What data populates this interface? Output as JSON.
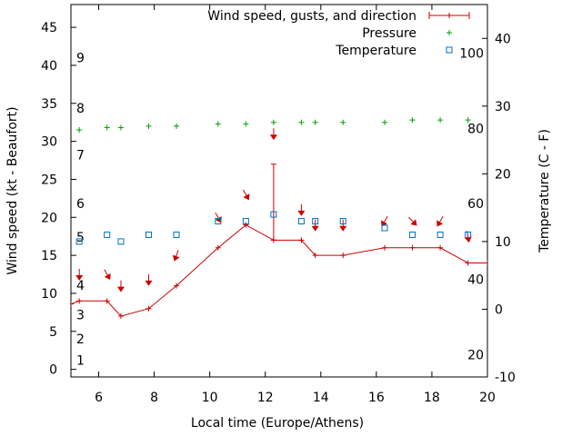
{
  "chart_data": {
    "type": "line",
    "xlabel": "Local time (Europe/Athens)",
    "ylabel": "Wind speed (kt - Beaufort)",
    "y2label": "Temperature (C - F)",
    "xlim": [
      5,
      20
    ],
    "ylim": [
      -1,
      48
    ],
    "y2lim": [
      -10,
      45
    ],
    "grid": false,
    "legend_position": "top-right",
    "x_ticks": [
      6,
      8,
      10,
      12,
      14,
      16,
      18,
      20
    ],
    "y_ticks": [
      0,
      5,
      10,
      15,
      20,
      25,
      30,
      35,
      40,
      45
    ],
    "y2_ticks": [
      -10,
      0,
      10,
      20,
      30,
      40
    ],
    "beaufort_labels": [
      {
        "label": "1",
        "kt": 1.2
      },
      {
        "label": "2",
        "kt": 4.0
      },
      {
        "label": "3",
        "kt": 7.2
      },
      {
        "label": "4",
        "kt": 11.1
      },
      {
        "label": "5",
        "kt": 17.4
      },
      {
        "label": "6",
        "kt": 21.8
      },
      {
        "label": "7",
        "kt": 28.2
      },
      {
        "label": "8",
        "kt": 34.4
      },
      {
        "label": "9",
        "kt": 41.0
      }
    ],
    "fahrenheit_labels": [
      {
        "label": "20",
        "celsius": -6.7
      },
      {
        "label": "40",
        "celsius": 4.4
      },
      {
        "label": "60",
        "celsius": 15.6
      },
      {
        "label": "80",
        "celsius": 26.7
      },
      {
        "label": "100",
        "celsius": 37.8
      }
    ],
    "series": [
      {
        "name": "Wind speed, gusts, and direction",
        "color": "#cc0000",
        "x": [
          5,
          5.3,
          6.3,
          6.8,
          7.8,
          8.8,
          10.3,
          11.3,
          12.3,
          13.3,
          13.8,
          14.8,
          16.3,
          17.3,
          18.3,
          19.3,
          20
        ],
        "y": [
          8.6,
          9,
          9,
          7,
          8,
          11,
          16,
          19,
          17,
          17,
          15,
          15,
          16,
          16,
          16,
          14,
          14
        ],
        "gusts": [
          {
            "x": 12.3,
            "low": 17,
            "high": 27
          }
        ],
        "directions": [
          {
            "x": 5.3,
            "wind": 12.5,
            "deg": 0
          },
          {
            "x": 6.3,
            "wind": 12.5,
            "deg": 330
          },
          {
            "x": 6.8,
            "wind": 11.0,
            "deg": 0
          },
          {
            "x": 7.8,
            "wind": 11.8,
            "deg": 0
          },
          {
            "x": 8.8,
            "wind": 15.0,
            "deg": 20
          },
          {
            "x": 10.3,
            "wind": 20.0,
            "deg": 330
          },
          {
            "x": 11.3,
            "wind": 23.0,
            "deg": 330
          },
          {
            "x": 12.3,
            "wind": 31.0,
            "deg": 0
          },
          {
            "x": 13.3,
            "wind": 21.0,
            "deg": 0
          },
          {
            "x": 13.8,
            "wind": 19.0,
            "deg": 0
          },
          {
            "x": 14.8,
            "wind": 19.0,
            "deg": 0
          },
          {
            "x": 16.3,
            "wind": 19.5,
            "deg": 30
          },
          {
            "x": 17.3,
            "wind": 19.5,
            "deg": 315
          },
          {
            "x": 18.3,
            "wind": 19.5,
            "deg": 30
          },
          {
            "x": 19.3,
            "wind": 17.5,
            "deg": 350
          }
        ]
      },
      {
        "name": "Pressure",
        "color": "#00a000",
        "x": [
          5.3,
          6.3,
          6.8,
          7.8,
          8.8,
          10.3,
          11.3,
          12.3,
          13.3,
          13.8,
          14.8,
          16.3,
          17.3,
          18.3,
          19.3
        ],
        "y": [
          31.5,
          31.8,
          31.8,
          32,
          32,
          32.3,
          32.3,
          32.5,
          32.5,
          32.5,
          32.5,
          32.5,
          32.8,
          32.8,
          32.8
        ]
      },
      {
        "name": "Temperature",
        "color": "#0070c0",
        "x": [
          5.3,
          6.3,
          6.8,
          7.8,
          8.8,
          10.3,
          11.3,
          12.3,
          13.3,
          13.8,
          14.8,
          16.3,
          17.3,
          18.3,
          19.3
        ],
        "y": [
          10,
          11,
          10,
          11,
          11,
          13,
          13,
          14,
          13,
          13,
          13,
          12,
          11,
          11,
          11
        ]
      }
    ]
  }
}
